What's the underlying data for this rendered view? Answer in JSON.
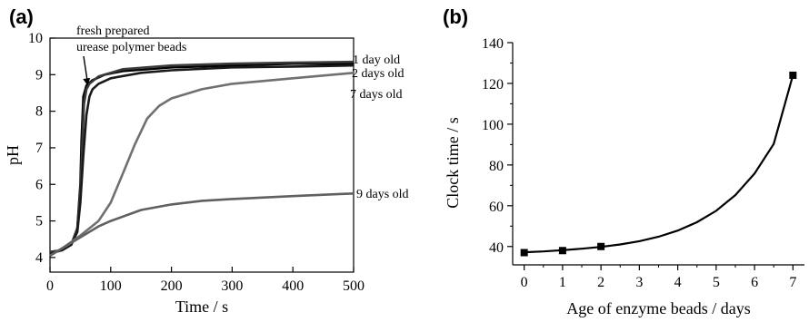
{
  "chart_data": [
    {
      "panel_label": "(a)",
      "type": "line",
      "xlabel": "Time / s",
      "ylabel": "pH",
      "xlim": [
        0,
        500
      ],
      "ylim": [
        3.6,
        10
      ],
      "xticks": [
        0,
        100,
        200,
        300,
        400,
        500
      ],
      "yticks": [
        4,
        5,
        6,
        7,
        8,
        9,
        10
      ],
      "annotation": {
        "text_lines": [
          "fresh prepared",
          "urease polymer beads"
        ],
        "arrow_to": [
          62,
          8.65
        ]
      },
      "series": [
        {
          "label": "fresh prepared",
          "color": "#000000",
          "x": [
            0,
            20,
            35,
            45,
            50,
            52,
            55,
            60,
            70,
            90,
            120,
            200,
            300,
            400,
            500
          ],
          "y": [
            4.15,
            4.2,
            4.35,
            4.8,
            6.0,
            7.2,
            8.4,
            8.7,
            8.85,
            9.0,
            9.1,
            9.2,
            9.25,
            9.3,
            9.3
          ]
        },
        {
          "label": "1 day old",
          "color": "#3a3a3a",
          "x": [
            0,
            20,
            35,
            45,
            50,
            53,
            56,
            60,
            65,
            80,
            120,
            200,
            300,
            400,
            500
          ],
          "y": [
            4.15,
            4.2,
            4.35,
            4.8,
            5.8,
            7.0,
            8.2,
            8.6,
            8.75,
            8.95,
            9.15,
            9.25,
            9.3,
            9.33,
            9.35
          ]
        },
        {
          "label": "2 days old",
          "color": "#1a1a1a",
          "x": [
            0,
            20,
            35,
            45,
            50,
            55,
            60,
            65,
            70,
            80,
            100,
            150,
            200,
            300,
            400,
            500
          ],
          "y": [
            4.1,
            4.2,
            4.35,
            4.7,
            5.5,
            6.8,
            7.9,
            8.4,
            8.6,
            8.75,
            8.9,
            9.05,
            9.12,
            9.2,
            9.22,
            9.25
          ]
        },
        {
          "label": "7 days old",
          "color": "#707070",
          "x": [
            0,
            20,
            50,
            80,
            100,
            120,
            140,
            160,
            180,
            200,
            250,
            300,
            400,
            500
          ],
          "y": [
            4.05,
            4.25,
            4.6,
            5.0,
            5.5,
            6.3,
            7.1,
            7.8,
            8.15,
            8.35,
            8.6,
            8.75,
            8.9,
            9.05
          ]
        },
        {
          "label": "9 days old",
          "color": "#606060",
          "x": [
            0,
            20,
            50,
            80,
            100,
            150,
            200,
            250,
            300,
            400,
            500
          ],
          "y": [
            4.05,
            4.25,
            4.55,
            4.85,
            5.0,
            5.3,
            5.45,
            5.55,
            5.6,
            5.68,
            5.75
          ]
        }
      ]
    },
    {
      "panel_label": "(b)",
      "type": "scatter",
      "xlabel": "Age of enzyme beads / days",
      "ylabel": "Clock time / s",
      "xlim": [
        -0.3,
        7.3
      ],
      "ylim": [
        31,
        140
      ],
      "xticks": [
        0,
        1,
        2,
        3,
        4,
        5,
        6,
        7
      ],
      "yticks": [
        40,
        60,
        80,
        100,
        120,
        140
      ],
      "series": [
        {
          "name": "",
          "x": [
            0,
            1,
            2,
            7
          ],
          "y": [
            37,
            38,
            40,
            124
          ]
        }
      ],
      "fit_curve": {
        "x": [
          0,
          0.5,
          1,
          1.5,
          2,
          2.5,
          3,
          3.5,
          4,
          4.5,
          5,
          5.5,
          6,
          6.5,
          7
        ],
        "y": [
          37.2,
          37.6,
          38.2,
          38.9,
          39.8,
          41.0,
          42.6,
          44.8,
          47.8,
          51.9,
          57.5,
          65.2,
          75.8,
          90.3,
          124
        ]
      }
    }
  ]
}
